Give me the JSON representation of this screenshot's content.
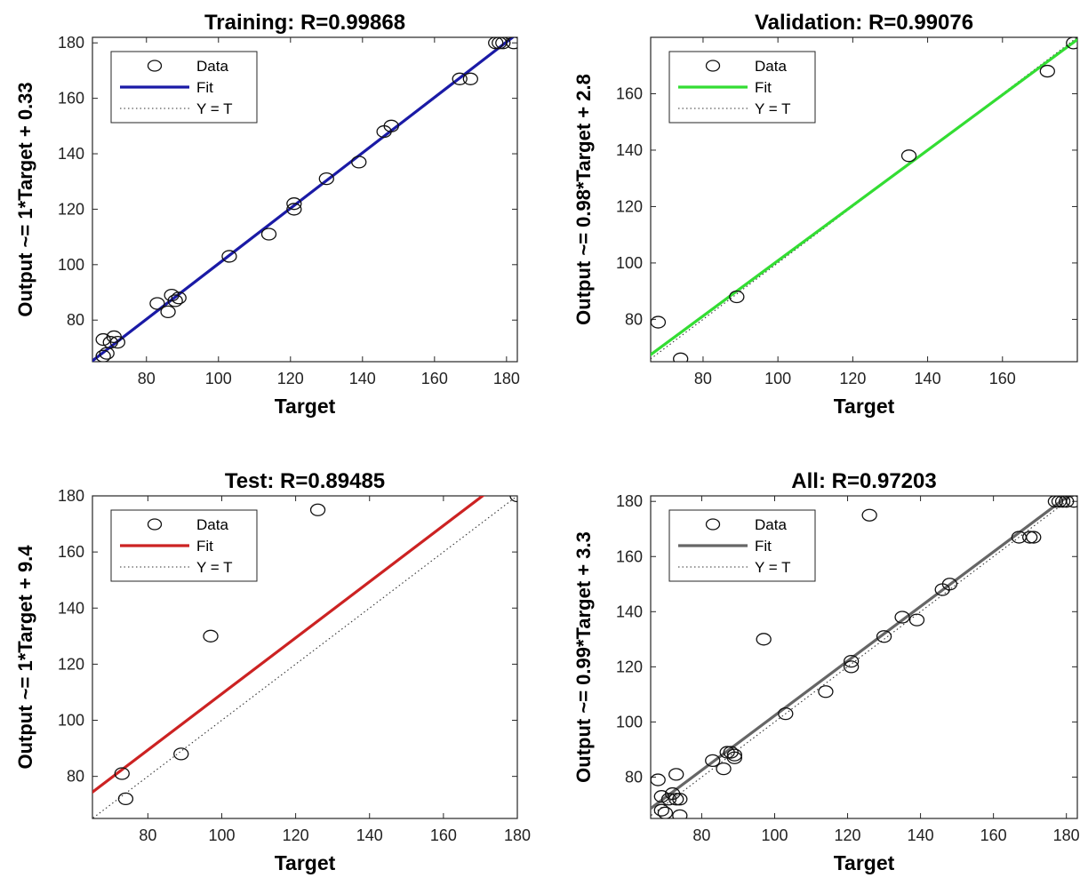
{
  "chart_data": [
    {
      "type": "scatter",
      "title": "Training: R=0.99868",
      "xlabel": "Target",
      "ylabel": "Output ~= 1*Target + 0.33",
      "xlim": [
        65,
        183
      ],
      "ylim": [
        65,
        182
      ],
      "xticks": [
        80,
        100,
        120,
        140,
        160,
        180
      ],
      "yticks": [
        80,
        100,
        120,
        140,
        160,
        180
      ],
      "fit": {
        "slope": 1,
        "intercept": 0.33,
        "color": "#1a1aa6"
      },
      "legend": {
        "data": "Data",
        "fit": "Fit",
        "ident": "Y = T",
        "placement": "top-left"
      },
      "points": [
        [
          68,
          73
        ],
        [
          68,
          67
        ],
        [
          69,
          68
        ],
        [
          70,
          72
        ],
        [
          71,
          74
        ],
        [
          72,
          72
        ],
        [
          83,
          86
        ],
        [
          86,
          83
        ],
        [
          87,
          89
        ],
        [
          88,
          87
        ],
        [
          89,
          88
        ],
        [
          103,
          103
        ],
        [
          114,
          111
        ],
        [
          121,
          122
        ],
        [
          121,
          120
        ],
        [
          130,
          131
        ],
        [
          139,
          137
        ],
        [
          146,
          148
        ],
        [
          148,
          150
        ],
        [
          167,
          167
        ],
        [
          170,
          167
        ],
        [
          177,
          180
        ],
        [
          178,
          180
        ],
        [
          179,
          180
        ],
        [
          182,
          180
        ]
      ]
    },
    {
      "type": "scatter",
      "title": "Validation: R=0.99076",
      "xlabel": "Target",
      "ylabel": "Output ~= 0.98*Target + 2.8",
      "xlim": [
        66,
        180
      ],
      "ylim": [
        65,
        180
      ],
      "xticks": [
        80,
        100,
        120,
        140,
        160
      ],
      "yticks": [
        80,
        100,
        120,
        140,
        160
      ],
      "fit": {
        "slope": 0.98,
        "intercept": 2.8,
        "color": "#33dd33"
      },
      "legend": {
        "data": "Data",
        "fit": "Fit",
        "ident": "Y = T",
        "placement": "top-left"
      },
      "points": [
        [
          68,
          79
        ],
        [
          74,
          66
        ],
        [
          89,
          88
        ],
        [
          135,
          138
        ],
        [
          172,
          168
        ],
        [
          179,
          178
        ]
      ]
    },
    {
      "type": "scatter",
      "title": "Test: R=0.89485",
      "xlabel": "Target",
      "ylabel": "Output ~= 1*Target + 9.4",
      "xlim": [
        65,
        180
      ],
      "ylim": [
        65,
        180
      ],
      "xticks": [
        80,
        100,
        120,
        140,
        160,
        180
      ],
      "yticks": [
        80,
        100,
        120,
        140,
        160,
        180
      ],
      "fit": {
        "slope": 1,
        "intercept": 9.4,
        "color": "#cc2222"
      },
      "legend": {
        "data": "Data",
        "fit": "Fit",
        "ident": "Y = T",
        "placement": "top-left"
      },
      "points": [
        [
          73,
          81
        ],
        [
          74,
          72
        ],
        [
          89,
          88
        ],
        [
          97,
          130
        ],
        [
          126,
          175
        ],
        [
          180,
          180
        ]
      ]
    },
    {
      "type": "scatter",
      "title": "All: R=0.97203",
      "xlabel": "Target",
      "ylabel": "Output ~= 0.99*Target + 3.3",
      "xlim": [
        66,
        183
      ],
      "ylim": [
        65,
        182
      ],
      "xticks": [
        80,
        100,
        120,
        140,
        160,
        180
      ],
      "yticks": [
        80,
        100,
        120,
        140,
        160,
        180
      ],
      "fit": {
        "slope": 0.99,
        "intercept": 3.3,
        "color": "#666666"
      },
      "legend": {
        "data": "Data",
        "fit": "Fit",
        "ident": "Y = T",
        "placement": "top-left"
      },
      "points": [
        [
          68,
          79
        ],
        [
          69,
          73
        ],
        [
          69,
          68
        ],
        [
          70,
          67
        ],
        [
          71,
          72
        ],
        [
          72,
          74
        ],
        [
          73,
          81
        ],
        [
          73,
          72
        ],
        [
          74,
          66
        ],
        [
          74,
          72
        ],
        [
          83,
          86
        ],
        [
          86,
          83
        ],
        [
          87,
          89
        ],
        [
          88,
          89
        ],
        [
          89,
          87
        ],
        [
          89,
          88
        ],
        [
          97,
          130
        ],
        [
          103,
          103
        ],
        [
          114,
          111
        ],
        [
          121,
          122
        ],
        [
          121,
          120
        ],
        [
          126,
          175
        ],
        [
          130,
          131
        ],
        [
          135,
          138
        ],
        [
          139,
          137
        ],
        [
          146,
          148
        ],
        [
          148,
          150
        ],
        [
          167,
          167
        ],
        [
          170,
          167
        ],
        [
          171,
          167
        ],
        [
          177,
          180
        ],
        [
          178,
          180
        ],
        [
          179,
          180
        ],
        [
          180,
          180
        ],
        [
          182,
          180
        ]
      ]
    }
  ]
}
